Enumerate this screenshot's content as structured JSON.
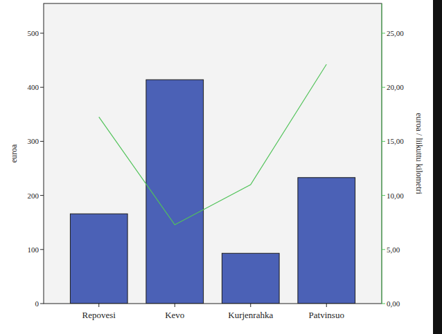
{
  "chart_data": {
    "type": "bar",
    "categories": [
      "Repovesi",
      "Kevo",
      "Kurjenrahka",
      "Patvinsuo"
    ],
    "series": [
      {
        "type": "bar",
        "color": "#4b61b6",
        "values": [
          166,
          414,
          93,
          233
        ]
      },
      {
        "type": "line",
        "color": "#52c35a",
        "axis": "y2",
        "values": [
          17.26,
          7.29,
          11.0,
          22.12
        ]
      }
    ],
    "y_label": "euroa",
    "y2_label": "euroa / liikuttu kilometri",
    "ylim": [
      0,
      555
    ],
    "yticks": [
      0,
      100,
      200,
      300,
      400,
      500
    ],
    "y2lim": [
      0,
      27.75
    ],
    "y2ticks": [
      {
        "value": 0,
        "label": "0,00"
      },
      {
        "value": 5,
        "label": "5,00"
      },
      {
        "value": 10,
        "label": "10,00"
      },
      {
        "value": 15,
        "label": "15,00"
      },
      {
        "value": 20,
        "label": "20,00"
      },
      {
        "value": 25,
        "label": "25,00"
      }
    ],
    "grid": false
  }
}
